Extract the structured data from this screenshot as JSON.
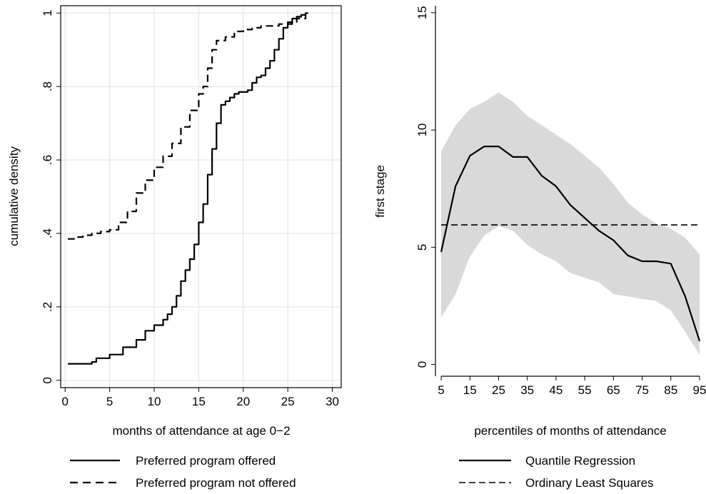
{
  "chart_data": [
    {
      "type": "line",
      "xlabel": "months of attendance at age 0−2",
      "ylabel": "cumulative density",
      "xlim": [
        -0.5,
        31
      ],
      "ylim": [
        -0.02,
        1.02
      ],
      "xticks": [
        0,
        5,
        10,
        15,
        20,
        25,
        30
      ],
      "yticks": [
        0,
        0.2,
        0.4,
        0.6,
        0.8,
        1
      ],
      "xtick_labels": [
        "0",
        "5",
        "10",
        "15",
        "20",
        "25",
        "30"
      ],
      "ytick_labels": [
        "0",
        ".2",
        ".4",
        ".6",
        ".8",
        "1"
      ],
      "grid": true,
      "legend_position": "bottom",
      "series": [
        {
          "name": "Preferred program offered",
          "style": "solid",
          "x": [
            0.3,
            2.0,
            3.0,
            3.5,
            4.5,
            5.0,
            6.5,
            8.0,
            9.0,
            10.0,
            11.0,
            11.5,
            12.0,
            12.5,
            13.0,
            13.5,
            14.0,
            14.5,
            15.0,
            15.5,
            16.0,
            16.5,
            17.0,
            17.5,
            18.0,
            18.5,
            19.0,
            19.5,
            20.0,
            20.5,
            21.0,
            21.5,
            22.0,
            22.5,
            23.0,
            23.5,
            24.0,
            24.5,
            25.0,
            25.5,
            26.0,
            26.5,
            27.0,
            27.3
          ],
          "y": [
            0.045,
            0.045,
            0.05,
            0.06,
            0.06,
            0.07,
            0.09,
            0.11,
            0.135,
            0.15,
            0.165,
            0.18,
            0.2,
            0.23,
            0.27,
            0.3,
            0.33,
            0.37,
            0.43,
            0.48,
            0.56,
            0.63,
            0.7,
            0.75,
            0.76,
            0.77,
            0.78,
            0.785,
            0.785,
            0.79,
            0.81,
            0.825,
            0.83,
            0.85,
            0.87,
            0.9,
            0.93,
            0.96,
            0.97,
            0.985,
            0.99,
            0.995,
            1.0,
            1.0
          ]
        },
        {
          "name": "Preferred program not offered",
          "style": "dashed",
          "x": [
            0.3,
            1.0,
            2.0,
            3.0,
            4.0,
            5.0,
            6.0,
            7.0,
            8.0,
            9.0,
            10.0,
            11.0,
            12.0,
            13.0,
            14.0,
            15.0,
            15.5,
            16.0,
            16.5,
            17.0,
            18.0,
            19.0,
            20.0,
            21.0,
            22.0,
            23.0,
            24.0,
            25.0,
            26.0,
            27.0
          ],
          "y": [
            0.385,
            0.39,
            0.395,
            0.4,
            0.405,
            0.41,
            0.43,
            0.46,
            0.51,
            0.545,
            0.58,
            0.61,
            0.645,
            0.69,
            0.735,
            0.78,
            0.8,
            0.85,
            0.9,
            0.925,
            0.935,
            0.95,
            0.955,
            0.96,
            0.965,
            0.965,
            0.97,
            0.975,
            0.985,
            0.995
          ]
        }
      ]
    },
    {
      "type": "line",
      "xlabel": "percentiles of months of attendance",
      "ylabel": "first stage",
      "xlim": [
        3,
        97
      ],
      "ylim": [
        -0.5,
        15.3
      ],
      "xticks": [
        5,
        15,
        25,
        35,
        45,
        55,
        65,
        75,
        85,
        95
      ],
      "yticks": [
        0,
        5,
        10,
        15
      ],
      "xtick_labels": [
        "5",
        "15",
        "25",
        "35",
        "45",
        "55",
        "65",
        "75",
        "85",
        "95"
      ],
      "ytick_labels": [
        "0",
        "5",
        "10",
        "15"
      ],
      "grid": false,
      "legend_position": "bottom",
      "band": {
        "x": [
          5,
          10,
          15,
          20,
          25,
          30,
          35,
          40,
          45,
          50,
          55,
          60,
          65,
          70,
          75,
          80,
          85,
          90,
          95
        ],
        "lower": [
          2.0,
          3.0,
          4.6,
          5.5,
          5.9,
          5.7,
          5.1,
          4.7,
          4.4,
          3.9,
          3.7,
          3.5,
          3.0,
          2.9,
          2.8,
          2.7,
          2.3,
          1.4,
          0.4
        ],
        "upper": [
          9.1,
          10.2,
          10.9,
          11.2,
          11.6,
          11.2,
          10.6,
          10.2,
          9.8,
          9.4,
          8.9,
          8.4,
          7.7,
          6.9,
          6.4,
          6.0,
          5.8,
          5.4,
          4.7
        ]
      },
      "series": [
        {
          "name": "Quantile Regression",
          "style": "solid",
          "x": [
            5,
            10,
            15,
            20,
            25,
            30,
            35,
            40,
            45,
            50,
            55,
            60,
            65,
            70,
            75,
            80,
            85,
            90,
            95
          ],
          "y": [
            4.8,
            7.6,
            8.9,
            9.3,
            9.3,
            8.85,
            8.85,
            8.05,
            7.6,
            6.8,
            6.25,
            5.7,
            5.3,
            4.65,
            4.4,
            4.4,
            4.3,
            2.9,
            1.0
          ]
        },
        {
          "name": "Ordinary Least Squares",
          "style": "dashed",
          "x": [
            5,
            95
          ],
          "y": [
            5.95,
            5.95
          ]
        }
      ]
    }
  ]
}
